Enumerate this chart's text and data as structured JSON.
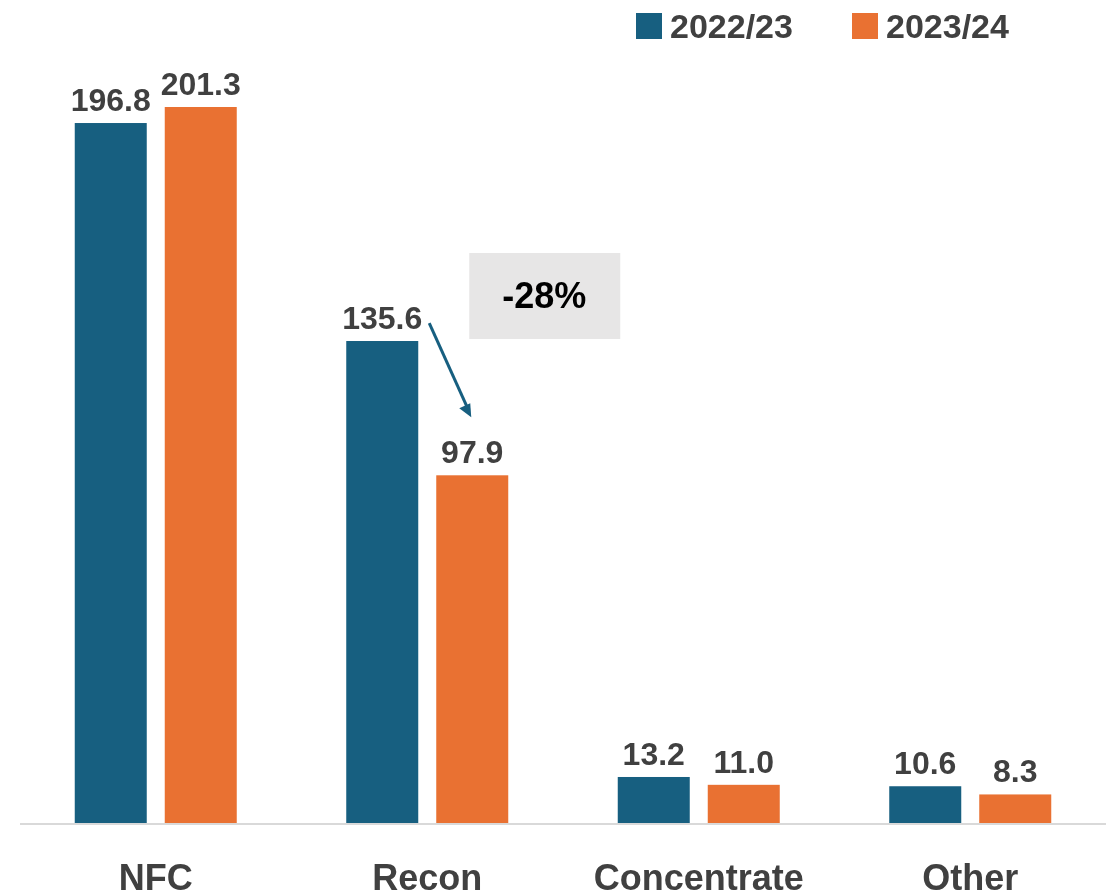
{
  "chart_data": {
    "type": "bar",
    "categories": [
      "NFC",
      "Recon",
      "Concentrate",
      "Other"
    ],
    "series": [
      {
        "name": "2022/23",
        "color": "#175f80",
        "values": [
          196.8,
          135.6,
          13.2,
          10.6
        ],
        "value_labels": [
          "196.8",
          "135.6",
          "13.2",
          "10.6"
        ]
      },
      {
        "name": "2023/24",
        "color": "#e97132",
        "values": [
          201.3,
          97.9,
          11.0,
          8.3
        ],
        "value_labels": [
          "201.3",
          "97.9",
          "11.0",
          "8.3"
        ]
      }
    ],
    "legend": "top right",
    "annotations": [
      "-28%"
    ]
  }
}
